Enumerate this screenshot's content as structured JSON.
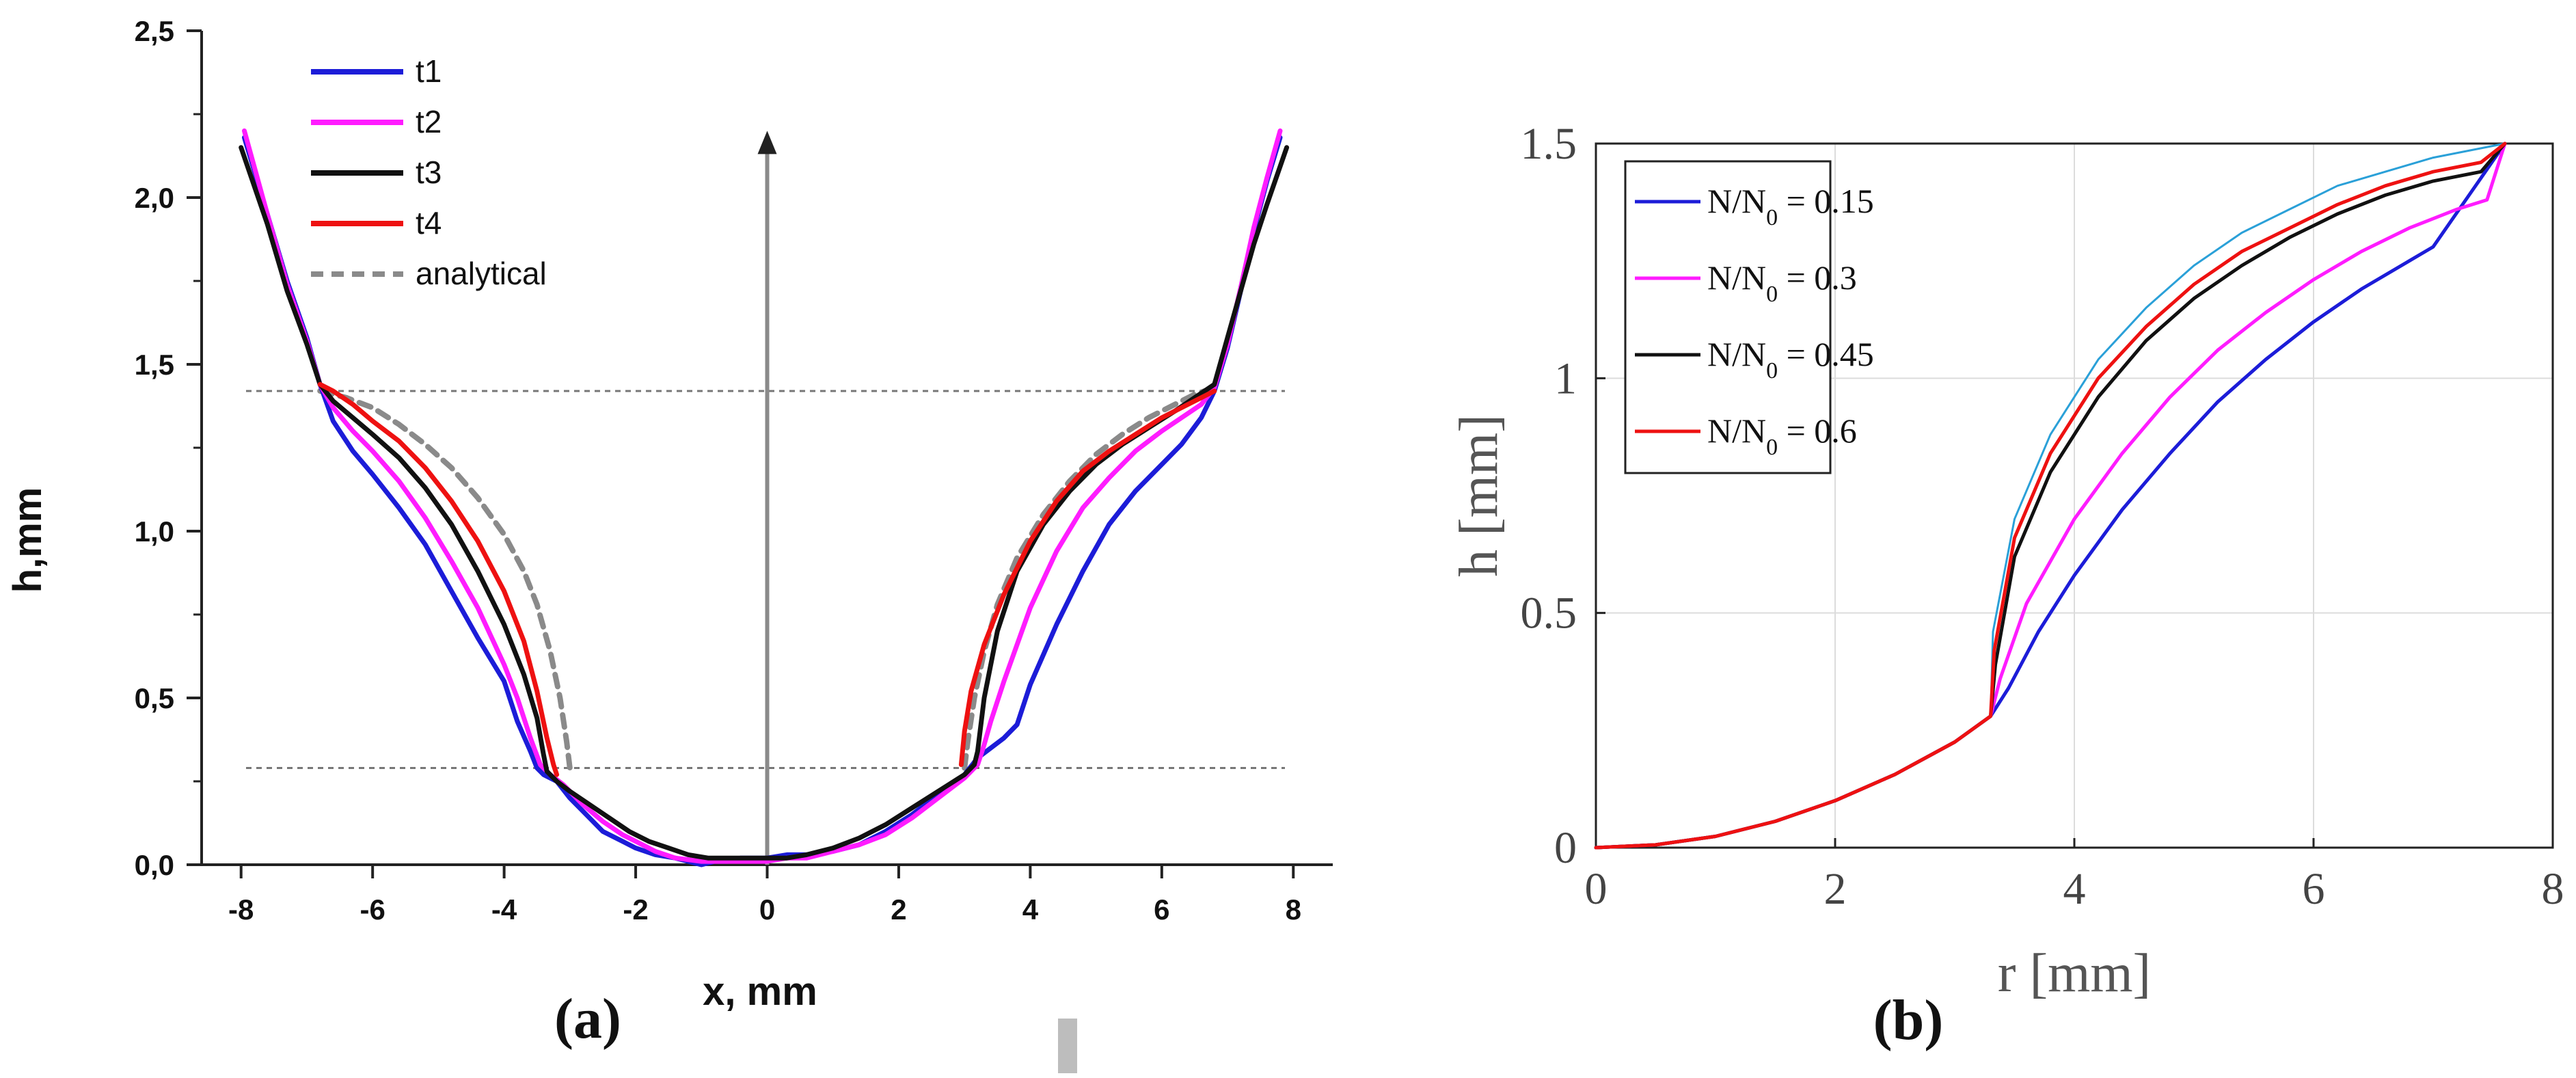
{
  "colors": {
    "blue": "#1c1cd8",
    "magenta": "#ff1cff",
    "black": "#111111",
    "red": "#ee1111",
    "analytical": "#8a8a8a",
    "arrow": "#8a8a8a",
    "thin_cyan": "#2aa0d8",
    "grid": "#dcdcdc"
  },
  "panels": {
    "a": {
      "label": "(a)"
    },
    "b": {
      "label": "(b)"
    }
  },
  "chart_data": [
    {
      "id": "a",
      "type": "line",
      "title": "",
      "xlabel": "x, mm",
      "ylabel": "h,mm",
      "xlim": [
        -8.6,
        8.6
      ],
      "ylim": [
        0.0,
        2.5
      ],
      "grid": false,
      "legend_position": "top-left",
      "xticks": [
        -8,
        -6,
        -4,
        -2,
        0,
        2,
        4,
        6,
        8
      ],
      "xtick_labels": [
        "-8",
        "-6",
        "-4",
        "-2",
        "0",
        "2",
        "4",
        "6",
        "8"
      ],
      "yticks": [
        0.0,
        0.5,
        1.0,
        1.5,
        2.0,
        2.5
      ],
      "ytick_labels": [
        "0,0",
        "0,5",
        "1,0",
        "1,5",
        "2,0",
        "2,5"
      ],
      "reference_lines": {
        "h_values": [
          1.42,
          0.29
        ],
        "vertical_arrow_x": 0,
        "arrow_to_h": 2.2
      },
      "series": [
        {
          "name": "t1",
          "color_key": "blue",
          "x": [
            -7.95,
            -7.6,
            -7.3,
            -7.0,
            -6.8,
            -6.6,
            -6.3,
            -6.0,
            -5.6,
            -5.2,
            -4.8,
            -4.4,
            -4.0,
            -3.8,
            -3.6,
            -3.5,
            -3.4,
            -3.2,
            -3.0,
            -2.8,
            -2.5,
            -2.2,
            -2.0,
            -1.7,
            -1.4,
            -1.2,
            -1.0,
            -0.8,
            -0.6,
            -0.4,
            -0.2,
            0.0,
            0.3,
            0.6,
            1.0,
            1.4,
            1.8,
            2.2,
            2.6,
            3.0,
            3.2,
            3.4,
            3.6,
            3.8,
            4.0,
            4.4,
            4.8,
            5.2,
            5.6,
            6.0,
            6.3,
            6.6,
            6.8,
            7.0,
            7.2,
            7.4,
            7.6,
            7.8
          ],
          "y": [
            2.18,
            1.95,
            1.75,
            1.58,
            1.44,
            1.33,
            1.24,
            1.17,
            1.07,
            0.96,
            0.82,
            0.68,
            0.55,
            0.43,
            0.34,
            0.29,
            0.27,
            0.25,
            0.2,
            0.16,
            0.1,
            0.07,
            0.05,
            0.03,
            0.02,
            0.01,
            0.0,
            0.01,
            0.01,
            0.02,
            0.02,
            0.02,
            0.03,
            0.03,
            0.04,
            0.06,
            0.1,
            0.15,
            0.21,
            0.27,
            0.32,
            0.35,
            0.38,
            0.42,
            0.54,
            0.72,
            0.88,
            1.02,
            1.12,
            1.2,
            1.26,
            1.34,
            1.42,
            1.55,
            1.72,
            1.9,
            2.05,
            2.18
          ]
        },
        {
          "name": "t2",
          "color_key": "magenta",
          "x": [
            -7.95,
            -7.6,
            -7.3,
            -7.0,
            -6.8,
            -6.6,
            -6.3,
            -6.0,
            -5.6,
            -5.2,
            -4.8,
            -4.4,
            -4.0,
            -3.8,
            -3.6,
            -3.45,
            -3.3,
            -3.1,
            -2.8,
            -2.5,
            -2.2,
            -2.0,
            -1.7,
            -1.4,
            -1.0,
            -0.6,
            -0.3,
            0.0,
            0.3,
            0.6,
            1.0,
            1.4,
            1.8,
            2.2,
            2.6,
            3.0,
            3.2,
            3.3,
            3.4,
            3.6,
            4.0,
            4.4,
            4.8,
            5.2,
            5.6,
            6.0,
            6.3,
            6.6,
            6.8,
            7.0,
            7.2,
            7.4,
            7.6,
            7.8
          ],
          "y": [
            2.2,
            1.95,
            1.74,
            1.57,
            1.44,
            1.37,
            1.3,
            1.24,
            1.15,
            1.04,
            0.91,
            0.77,
            0.6,
            0.5,
            0.38,
            0.3,
            0.27,
            0.24,
            0.18,
            0.13,
            0.09,
            0.07,
            0.04,
            0.02,
            0.01,
            0.01,
            0.01,
            0.01,
            0.02,
            0.02,
            0.04,
            0.06,
            0.09,
            0.14,
            0.2,
            0.26,
            0.3,
            0.36,
            0.43,
            0.55,
            0.77,
            0.94,
            1.07,
            1.16,
            1.24,
            1.3,
            1.34,
            1.38,
            1.43,
            1.56,
            1.73,
            1.91,
            2.06,
            2.2
          ]
        },
        {
          "name": "t3",
          "color_key": "black",
          "x": [
            -8.0,
            -7.6,
            -7.3,
            -7.0,
            -6.8,
            -6.6,
            -6.3,
            -6.0,
            -5.6,
            -5.2,
            -4.8,
            -4.4,
            -4.0,
            -3.7,
            -3.5,
            -3.4,
            -3.35,
            -3.2,
            -3.0,
            -2.7,
            -2.4,
            -2.1,
            -1.8,
            -1.5,
            -1.2,
            -0.9,
            -0.6,
            -0.3,
            0.0,
            0.3,
            0.6,
            1.0,
            1.4,
            1.8,
            2.2,
            2.6,
            3.0,
            3.15,
            3.2,
            3.3,
            3.5,
            3.8,
            4.2,
            4.6,
            5.0,
            5.4,
            5.8,
            6.2,
            6.5,
            6.8,
            7.0,
            7.2,
            7.4,
            7.6,
            7.9
          ],
          "y": [
            2.15,
            1.92,
            1.72,
            1.56,
            1.44,
            1.39,
            1.34,
            1.29,
            1.22,
            1.13,
            1.02,
            0.88,
            0.72,
            0.57,
            0.44,
            0.33,
            0.28,
            0.25,
            0.22,
            0.18,
            0.14,
            0.1,
            0.07,
            0.05,
            0.03,
            0.02,
            0.02,
            0.02,
            0.02,
            0.02,
            0.03,
            0.05,
            0.08,
            0.12,
            0.17,
            0.22,
            0.27,
            0.3,
            0.34,
            0.5,
            0.7,
            0.88,
            1.02,
            1.12,
            1.2,
            1.26,
            1.31,
            1.36,
            1.4,
            1.44,
            1.58,
            1.72,
            1.86,
            1.98,
            2.15
          ]
        },
        {
          "name": "t4",
          "color_key": "red",
          "x": [
            -6.8,
            -6.6,
            -6.3,
            -6.0,
            -5.6,
            -5.2,
            -4.8,
            -4.4,
            -4.0,
            -3.7,
            -3.5,
            -3.35,
            -3.25,
            -3.2,
            2.95,
            3.0,
            3.1,
            3.3,
            3.6,
            4.0,
            4.4,
            4.8,
            5.2,
            5.6,
            6.0,
            6.3,
            6.6,
            6.8
          ],
          "y": [
            1.44,
            1.42,
            1.38,
            1.33,
            1.27,
            1.19,
            1.09,
            0.97,
            0.82,
            0.67,
            0.52,
            0.38,
            0.3,
            0.27,
            0.3,
            0.4,
            0.52,
            0.66,
            0.81,
            0.97,
            1.09,
            1.18,
            1.24,
            1.29,
            1.34,
            1.37,
            1.4,
            1.42
          ]
        },
        {
          "name": "analytical",
          "color_key": "analytical",
          "dashed": true,
          "x": [
            -6.8,
            -6.4,
            -6.0,
            -5.6,
            -5.2,
            -4.8,
            -4.4,
            -4.0,
            -3.7,
            -3.5,
            -3.3,
            -3.15,
            -3.05,
            -3.0,
            3.0,
            3.05,
            3.15,
            3.3,
            3.5,
            3.8,
            4.2,
            4.6,
            5.0,
            5.4,
            5.8,
            6.2,
            6.5,
            6.8
          ],
          "y": [
            1.42,
            1.4,
            1.37,
            1.32,
            1.26,
            1.19,
            1.1,
            0.99,
            0.88,
            0.78,
            0.64,
            0.5,
            0.37,
            0.29,
            0.29,
            0.37,
            0.5,
            0.64,
            0.78,
            0.92,
            1.05,
            1.15,
            1.23,
            1.29,
            1.34,
            1.38,
            1.41,
            1.43
          ]
        }
      ]
    },
    {
      "id": "b",
      "type": "line",
      "title": "",
      "xlabel": "r [mm]",
      "ylabel": "h [mm]",
      "xlim": [
        0,
        8
      ],
      "ylim": [
        0,
        1.5
      ],
      "grid": true,
      "legend_position": "top-left",
      "xticks": [
        0,
        2,
        4,
        6,
        8
      ],
      "xtick_labels": [
        "0",
        "2",
        "4",
        "6",
        "8"
      ],
      "yticks": [
        0,
        0.5,
        1,
        1.5
      ],
      "ytick_labels": [
        "0",
        "0.5",
        "1",
        "1.5"
      ],
      "legend_labels": [
        {
          "prefix": "N/N",
          "sub": "0",
          "suffix": " = 0.15"
        },
        {
          "prefix": "N/N",
          "sub": "0",
          "suffix": " = 0.3"
        },
        {
          "prefix": "N/N",
          "sub": "0",
          "suffix": " = 0.45"
        },
        {
          "prefix": "N/N",
          "sub": "0",
          "suffix": " = 0.6"
        }
      ],
      "series": [
        {
          "name": "N/N0 = 0.15",
          "color_key": "blue",
          "x": [
            0,
            0.5,
            1.0,
            1.5,
            2.0,
            2.5,
            3.0,
            3.3,
            3.45,
            3.7,
            4.0,
            4.4,
            4.8,
            5.2,
            5.6,
            6.0,
            6.4,
            6.8,
            7.0,
            7.3,
            7.6
          ],
          "y": [
            0,
            0.006,
            0.024,
            0.056,
            0.1,
            0.156,
            0.225,
            0.28,
            0.34,
            0.46,
            0.58,
            0.72,
            0.84,
            0.95,
            1.04,
            1.12,
            1.19,
            1.25,
            1.28,
            1.39,
            1.5
          ]
        },
        {
          "name": "N/N0 = 0.3",
          "color_key": "magenta",
          "x": [
            0,
            0.5,
            1.0,
            1.5,
            2.0,
            2.5,
            3.0,
            3.3,
            3.38,
            3.6,
            4.0,
            4.4,
            4.8,
            5.2,
            5.6,
            6.0,
            6.4,
            6.8,
            7.2,
            7.45,
            7.6
          ],
          "y": [
            0,
            0.006,
            0.024,
            0.056,
            0.1,
            0.156,
            0.225,
            0.28,
            0.36,
            0.52,
            0.7,
            0.84,
            0.96,
            1.06,
            1.14,
            1.21,
            1.27,
            1.32,
            1.36,
            1.38,
            1.5
          ]
        },
        {
          "name": "N/N0 = 0.45",
          "color_key": "black",
          "x": [
            0,
            0.5,
            1.0,
            1.5,
            2.0,
            2.5,
            3.0,
            3.3,
            3.34,
            3.5,
            3.8,
            4.2,
            4.6,
            5.0,
            5.4,
            5.8,
            6.2,
            6.6,
            7.0,
            7.4,
            7.6
          ],
          "y": [
            0,
            0.006,
            0.024,
            0.056,
            0.1,
            0.156,
            0.225,
            0.28,
            0.39,
            0.62,
            0.8,
            0.96,
            1.08,
            1.17,
            1.24,
            1.3,
            1.35,
            1.39,
            1.42,
            1.44,
            1.5
          ]
        },
        {
          "name": "N/N0 = 0.6",
          "color_key": "red",
          "x": [
            0,
            0.5,
            1.0,
            1.5,
            2.0,
            2.5,
            3.0,
            3.3,
            3.33,
            3.5,
            3.8,
            4.2,
            4.6,
            5.0,
            5.4,
            5.8,
            6.2,
            6.6,
            7.0,
            7.4,
            7.6
          ],
          "y": [
            0,
            0.006,
            0.024,
            0.056,
            0.1,
            0.156,
            0.225,
            0.28,
            0.42,
            0.66,
            0.84,
            1.0,
            1.11,
            1.2,
            1.27,
            1.32,
            1.37,
            1.41,
            1.44,
            1.46,
            1.5
          ]
        },
        {
          "name": "",
          "color_key": "thin_cyan",
          "thin": true,
          "x": [
            3.3,
            3.32,
            3.5,
            3.8,
            4.2,
            4.6,
            5.0,
            5.4,
            5.8,
            6.2,
            6.6,
            7.0,
            7.4,
            7.6
          ],
          "y": [
            0.28,
            0.46,
            0.7,
            0.88,
            1.04,
            1.15,
            1.24,
            1.31,
            1.36,
            1.41,
            1.44,
            1.47,
            1.49,
            1.5
          ]
        }
      ]
    }
  ]
}
